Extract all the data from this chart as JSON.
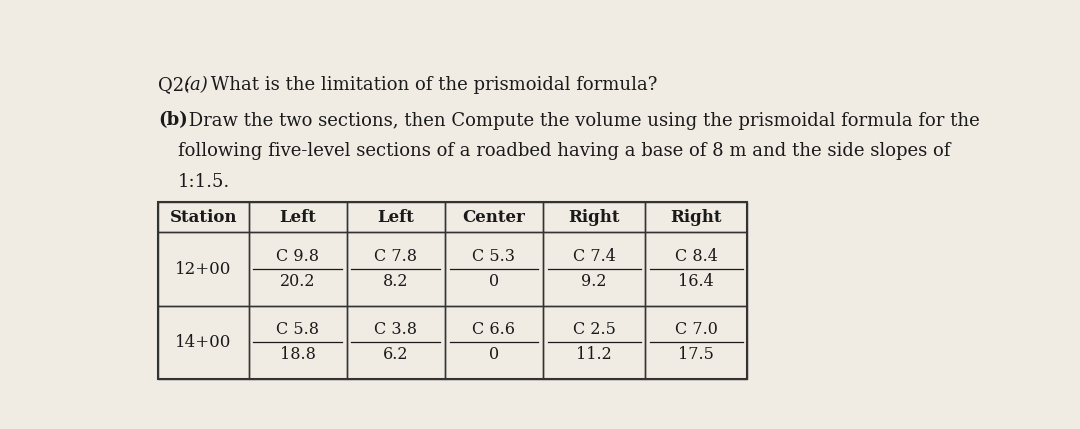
{
  "bg_color": "#f0ece4",
  "text_color": "#1a1a1a",
  "line1_normal": "Q2: ",
  "line1_paren": "(a)",
  "line1_rest": " What is the limitation of the prismoidal formula?",
  "line2_paren": "(b)",
  "line2_rest": " Draw the two sections, then Compute the volume using the prismoidal formula for the",
  "line3": "following five-level sections of a roadbed having a base of 8 m and the side slopes of",
  "line4": "1:1.5.",
  "table_headers": [
    "Station",
    "Left",
    "Left",
    "Center",
    "Right",
    "Right"
  ],
  "table_rows": [
    {
      "station": "12+00",
      "cols": [
        {
          "top": "C 9.8",
          "bottom": "20.2"
        },
        {
          "top": "C 7.8",
          "bottom": "8.2"
        },
        {
          "top": "C 5.3",
          "bottom": "0"
        },
        {
          "top": "C 7.4",
          "bottom": "9.2"
        },
        {
          "top": "C 8.4",
          "bottom": "16.4"
        }
      ]
    },
    {
      "station": "14+00",
      "cols": [
        {
          "top": "C 5.8",
          "bottom": "18.8"
        },
        {
          "top": "C 3.8",
          "bottom": "6.2"
        },
        {
          "top": "C 6.6",
          "bottom": "0"
        },
        {
          "top": "C 2.5",
          "bottom": "11.2"
        },
        {
          "top": "C 7.0",
          "bottom": "17.5"
        }
      ]
    }
  ]
}
